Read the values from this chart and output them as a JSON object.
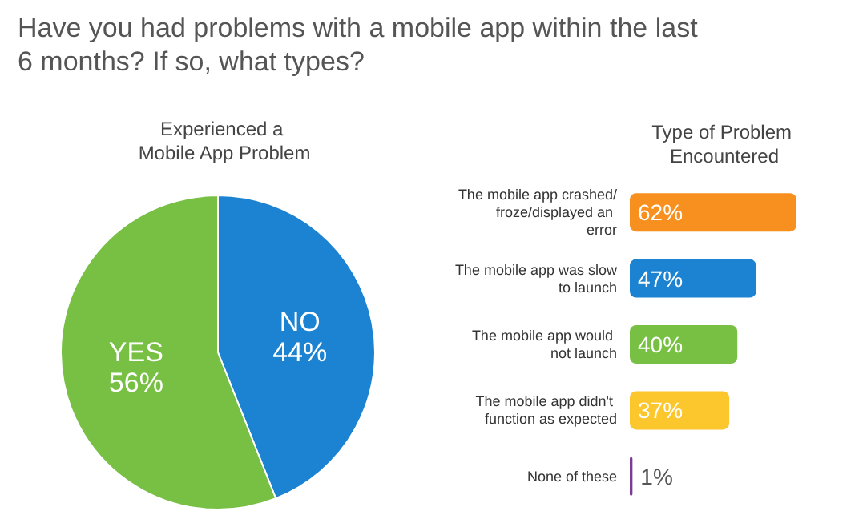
{
  "chart_data": [
    {
      "type": "pie",
      "title": "Have you had problems with a mobile app within the last 6 months? If so, what types?",
      "subtitle": "Experienced a Mobile App Problem",
      "categories": [
        "NO",
        "YES"
      ],
      "values": [
        44,
        56
      ],
      "colors": [
        "#1b83d1",
        "#78c044"
      ],
      "value_labels": [
        "44%",
        "56%"
      ]
    },
    {
      "type": "bar",
      "orientation": "horizontal",
      "title": "Type of Problem Encountered",
      "categories": [
        "The mobile app crashed/froze/displayed an error",
        "The mobile app was slow to launch",
        "The mobile app would not launch",
        "The mobile app didn't function as expected",
        "None of these"
      ],
      "values": [
        62,
        47,
        40,
        37,
        1
      ],
      "colors": [
        "#f7901e",
        "#1b83d1",
        "#78c044",
        "#fcc62d",
        "#7a3c95"
      ],
      "value_labels": [
        "62%",
        "47%",
        "40%",
        "37%",
        "1%"
      ]
    }
  ]
}
